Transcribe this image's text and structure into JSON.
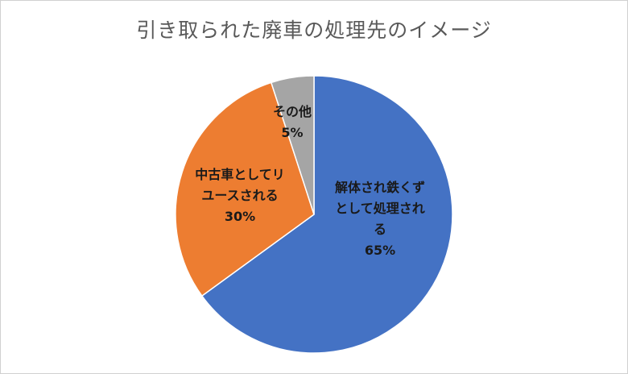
{
  "chart_data": {
    "type": "pie",
    "title": "引き取られた廃車の処理先のイメージ",
    "slices": [
      {
        "label_lines": [
          "解体され鉄くず",
          "として処理され",
          "る"
        ],
        "percent_label": "65%",
        "value": 65,
        "color": "#4472C4"
      },
      {
        "label_lines": [
          "中古車としてリ",
          "ユースされる"
        ],
        "percent_label": "30%",
        "value": 30,
        "color": "#ED7D31"
      },
      {
        "label_lines": [
          "その他"
        ],
        "percent_label": "5%",
        "value": 5,
        "color": "#A5A5A5"
      }
    ]
  }
}
